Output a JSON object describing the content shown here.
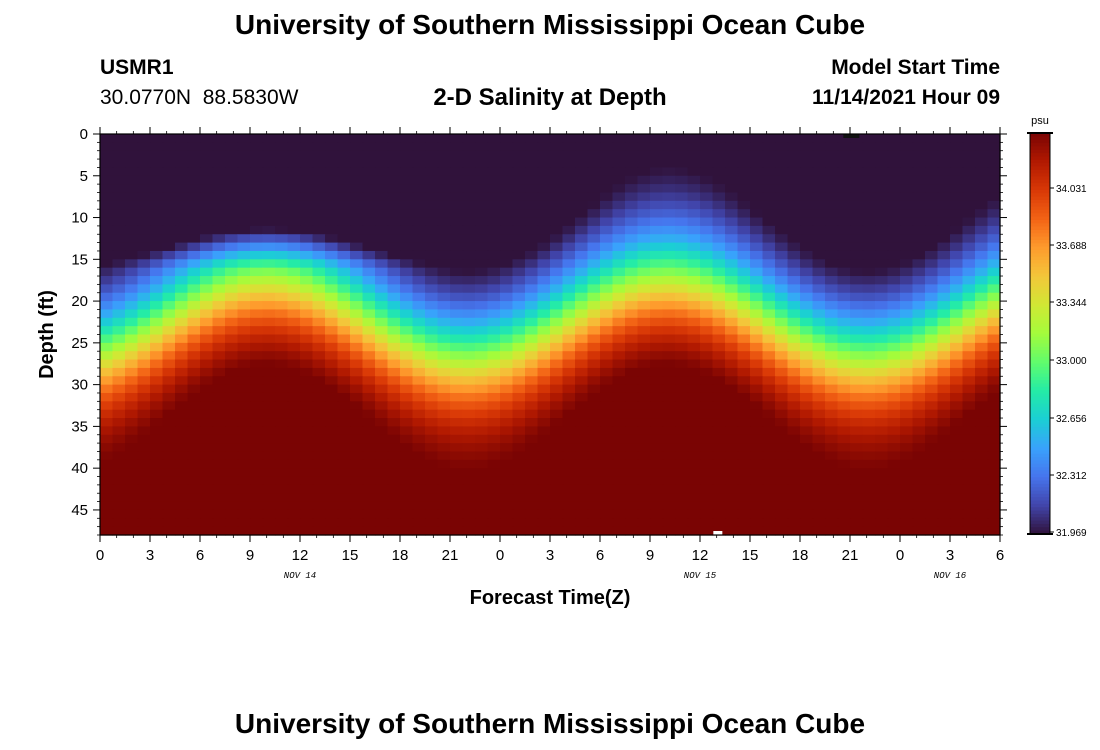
{
  "header": {
    "title": "University of Southern Mississippi Ocean Cube",
    "station_id": "USMR1",
    "station_location": "30.0770N  88.5830W",
    "subtitle": "2-D Salinity at Depth",
    "start_label": "Model Start Time",
    "start_value": "11/14/2021 Hour 09"
  },
  "footer": {
    "title": "University of Southern Mississippi Ocean Cube"
  },
  "chart_data": {
    "type": "heatmap",
    "title": "2-D Salinity at Depth",
    "xlabel": "Forecast Time(Z)",
    "ylabel": "Depth (ft)",
    "x_range_hours": [
      0,
      54
    ],
    "x_tick_labels": [
      "0",
      "3",
      "6",
      "9",
      "12",
      "15",
      "18",
      "21",
      "0",
      "3",
      "6",
      "9",
      "12",
      "15",
      "18",
      "21",
      "0",
      "3",
      "6"
    ],
    "date_labels": [
      {
        "text": "NOV 14",
        "hour": 12
      },
      {
        "text": "NOV 15",
        "hour": 36
      },
      {
        "text": "NOV 16",
        "hour": 51
      }
    ],
    "ylim": [
      0,
      48
    ],
    "y_tick_values": [
      0,
      5,
      10,
      15,
      20,
      25,
      30,
      35,
      40,
      45
    ],
    "y_tick_labels": [
      "0",
      "5",
      "10",
      "15",
      "20",
      "25",
      "30",
      "35",
      "40",
      "45"
    ],
    "colorbar": {
      "unit": "psu",
      "min": 31.969,
      "max": 34.031,
      "tick_labels": [
        "34.031",
        "33.688",
        "33.344",
        "33.000",
        "32.656",
        "32.312",
        "31.969"
      ],
      "colors": [
        "#30123b",
        "#4145ab",
        "#4675ed",
        "#39a2fc",
        "#1bcfd4",
        "#24eca6",
        "#61fc6c",
        "#a4fc3b",
        "#d1e834",
        "#f3c63a",
        "#fe9b2d",
        "#f36315",
        "#d93806",
        "#b11901",
        "#7a0403"
      ]
    },
    "field_description": "Fresher water (~32.0 psu) in the upper 15 ft, saltier water (~34.0+ psu) near the bottom; the halocline oscillates with a ~24 h tidal period, shallowest near hours 9-12 and 33-36, deepest near hours 21-24 and 45-48."
  }
}
